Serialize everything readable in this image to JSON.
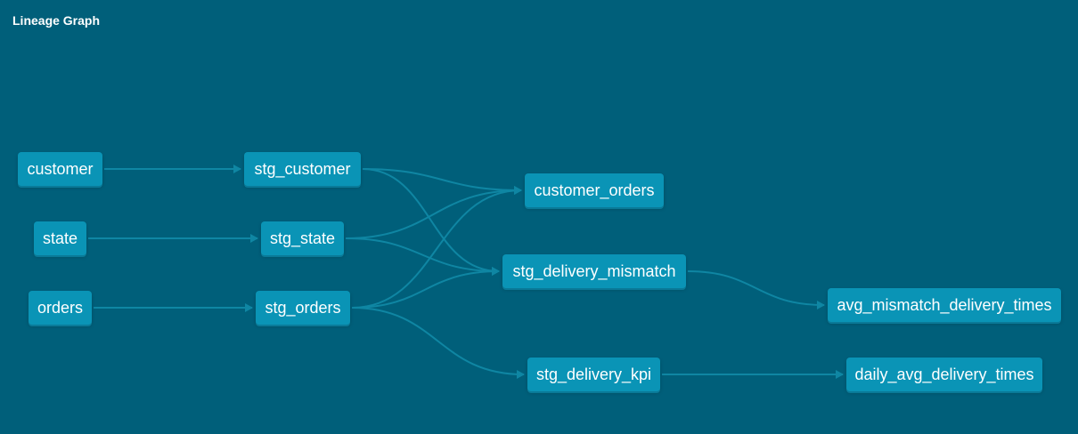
{
  "header": {
    "title": "Lineage Graph"
  },
  "colors": {
    "background": "#005f7a",
    "node_fill": "#0a94b6",
    "edge": "#0f86a3",
    "text": "#ffffff"
  },
  "nodes": {
    "customer": "customer",
    "state": "state",
    "orders": "orders",
    "stg_customer": "stg_customer",
    "stg_state": "stg_state",
    "stg_orders": "stg_orders",
    "customer_orders": "customer_orders",
    "stg_delivery_mismatch": "stg_delivery_mismatch",
    "stg_delivery_kpi": "stg_delivery_kpi",
    "avg_mismatch_delivery_times": "avg_mismatch_delivery_times",
    "daily_avg_delivery_times": "daily_avg_delivery_times"
  },
  "edges": [
    [
      "customer",
      "stg_customer"
    ],
    [
      "state",
      "stg_state"
    ],
    [
      "orders",
      "stg_orders"
    ],
    [
      "stg_customer",
      "customer_orders"
    ],
    [
      "stg_customer",
      "stg_delivery_mismatch"
    ],
    [
      "stg_state",
      "customer_orders"
    ],
    [
      "stg_state",
      "stg_delivery_mismatch"
    ],
    [
      "stg_orders",
      "customer_orders"
    ],
    [
      "stg_orders",
      "stg_delivery_mismatch"
    ],
    [
      "stg_orders",
      "stg_delivery_kpi"
    ],
    [
      "stg_delivery_mismatch",
      "avg_mismatch_delivery_times"
    ],
    [
      "stg_delivery_kpi",
      "daily_avg_delivery_times"
    ]
  ]
}
